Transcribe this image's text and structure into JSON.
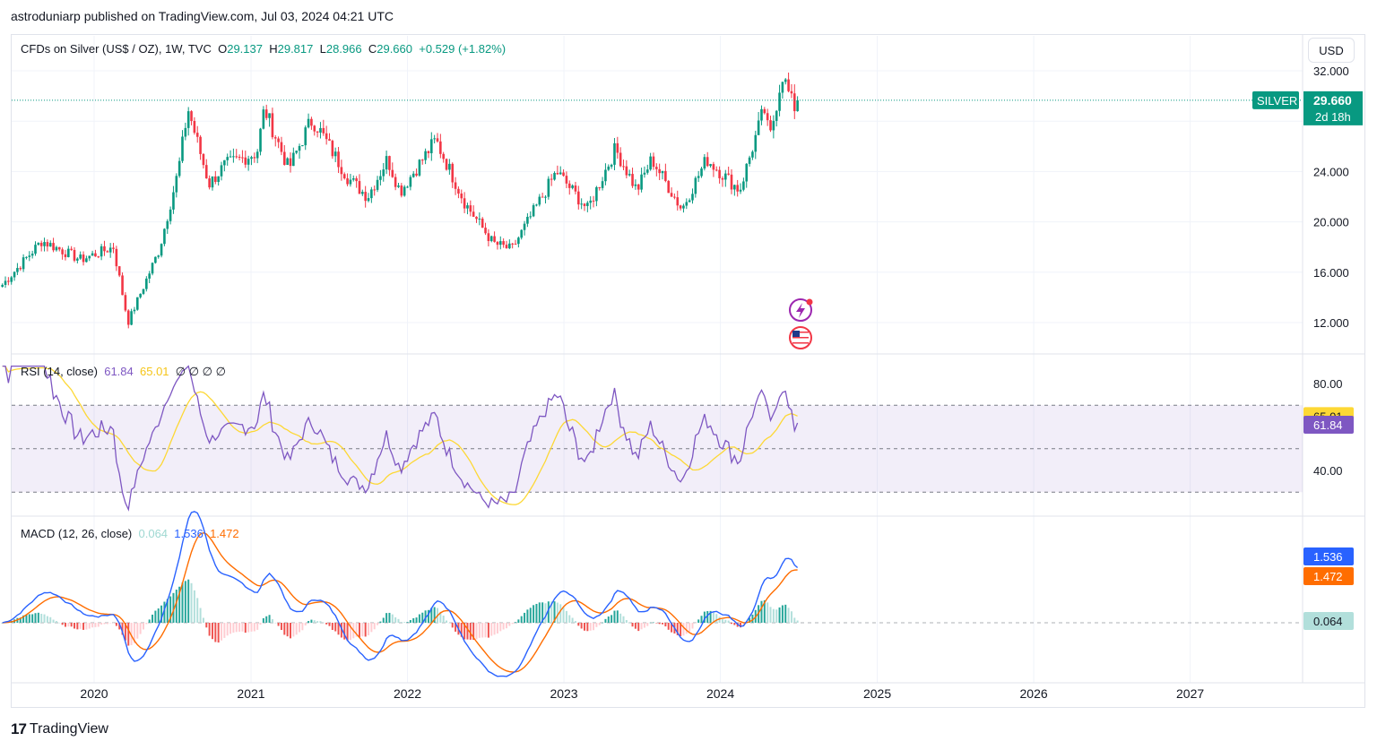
{
  "header": {
    "publisher_line": "astroduniarp published on TradingView.com, Jul 03, 2024 04:21 UTC"
  },
  "price_pane": {
    "symbol_title": "CFDs on Silver (US$ / OZ), 1W, TVC",
    "o_label": "O",
    "o_value": "29.137",
    "h_label": "H",
    "h_value": "29.817",
    "l_label": "L",
    "l_value": "28.966",
    "c_label": "C",
    "c_value": "29.660",
    "change": "+0.529 (+1.82%)",
    "currency_button": "USD",
    "symbol_tag": "SILVER",
    "last_price": "29.660",
    "countdown": "2d 18h"
  },
  "rsi_pane": {
    "title": "RSI (14, close)",
    "rsi_value": "61.84",
    "ma_value": "65.01",
    "placeholders": "∅ ∅ ∅ ∅"
  },
  "macd_pane": {
    "title": "MACD (12, 26, close)",
    "hist_value": "0.064",
    "macd_value": "1.536",
    "signal_value": "1.472"
  },
  "footer": {
    "brand": "TradingView",
    "logo_glyph": "17"
  },
  "colors": {
    "up": "#089981",
    "down": "#f23645",
    "rsi": "#7e57c2",
    "rsi_ma": "#fdd835",
    "macd": "#2962ff",
    "signal": "#ff6d00",
    "hist_pos": "#26a69a",
    "hist_neg": "#ef5350",
    "hist_pos_light": "#b2dfdb",
    "hist_neg_light": "#ffcdd2"
  },
  "icons": [
    "lightning-event-icon",
    "us-flag-event-icon"
  ],
  "chart_data": [
    {
      "type": "candlestick",
      "title": "CFDs on Silver (US$ / OZ), 1W, TVC",
      "x_tick_labels": [
        "2020",
        "2021",
        "2022",
        "2023",
        "2024",
        "2025",
        "2026",
        "2027"
      ],
      "y_tick_labels": [
        "12.000",
        "16.000",
        "20.000",
        "24.000",
        "32.000"
      ],
      "ylim": [
        9.5,
        34
      ],
      "last": 29.66,
      "anchors": [
        [
          "2019-06-01",
          15.0
        ],
        [
          "2019-09-01",
          18.5
        ],
        [
          "2019-12-01",
          17.0
        ],
        [
          "2020-02-15",
          18.0
        ],
        [
          "2020-03-20",
          12.0
        ],
        [
          "2020-06-01",
          17.8
        ],
        [
          "2020-07-15",
          24.0
        ],
        [
          "2020-08-07",
          29.0
        ],
        [
          "2020-09-25",
          23.0
        ],
        [
          "2020-11-01",
          24.5
        ],
        [
          "2021-01-15",
          25.5
        ],
        [
          "2021-02-01",
          29.0
        ],
        [
          "2021-03-30",
          24.2
        ],
        [
          "2021-05-20",
          28.0
        ],
        [
          "2021-06-01",
          27.8
        ],
        [
          "2021-08-15",
          23.5
        ],
        [
          "2021-09-30",
          22.0
        ],
        [
          "2021-11-15",
          25.0
        ],
        [
          "2021-12-15",
          22.4
        ],
        [
          "2022-03-08",
          26.5
        ],
        [
          "2022-05-15",
          21.5
        ],
        [
          "2022-07-20",
          18.3
        ],
        [
          "2022-09-01",
          17.8
        ],
        [
          "2022-12-15",
          24.0
        ],
        [
          "2023-02-25",
          21.0
        ],
        [
          "2023-05-01",
          25.8
        ],
        [
          "2023-06-20",
          22.5
        ],
        [
          "2023-07-25",
          25.0
        ],
        [
          "2023-10-03",
          21.0
        ],
        [
          "2023-11-30",
          25.0
        ],
        [
          "2024-02-15",
          22.5
        ],
        [
          "2024-04-12",
          29.0
        ],
        [
          "2024-04-25",
          26.5
        ],
        [
          "2024-05-24",
          31.8
        ],
        [
          "2024-06-20",
          29.0
        ],
        [
          "2024-07-01",
          29.66
        ]
      ]
    },
    {
      "type": "line",
      "title": "RSI (14, close)",
      "y_tick_labels": [
        "40.00",
        "80.00"
      ],
      "reference_levels": [
        70,
        50,
        30
      ],
      "ylim": [
        20,
        90
      ],
      "series": [
        {
          "name": "RSI",
          "last": 61.84
        },
        {
          "name": "RSI-based MA",
          "last": 65.01
        }
      ]
    },
    {
      "type": "line",
      "title": "MACD (12, 26, close)",
      "series": [
        {
          "name": "MACD",
          "last": 1.536
        },
        {
          "name": "Signal",
          "last": 1.472
        },
        {
          "name": "Histogram",
          "last": 0.064
        }
      ],
      "zero_line": 0
    }
  ]
}
